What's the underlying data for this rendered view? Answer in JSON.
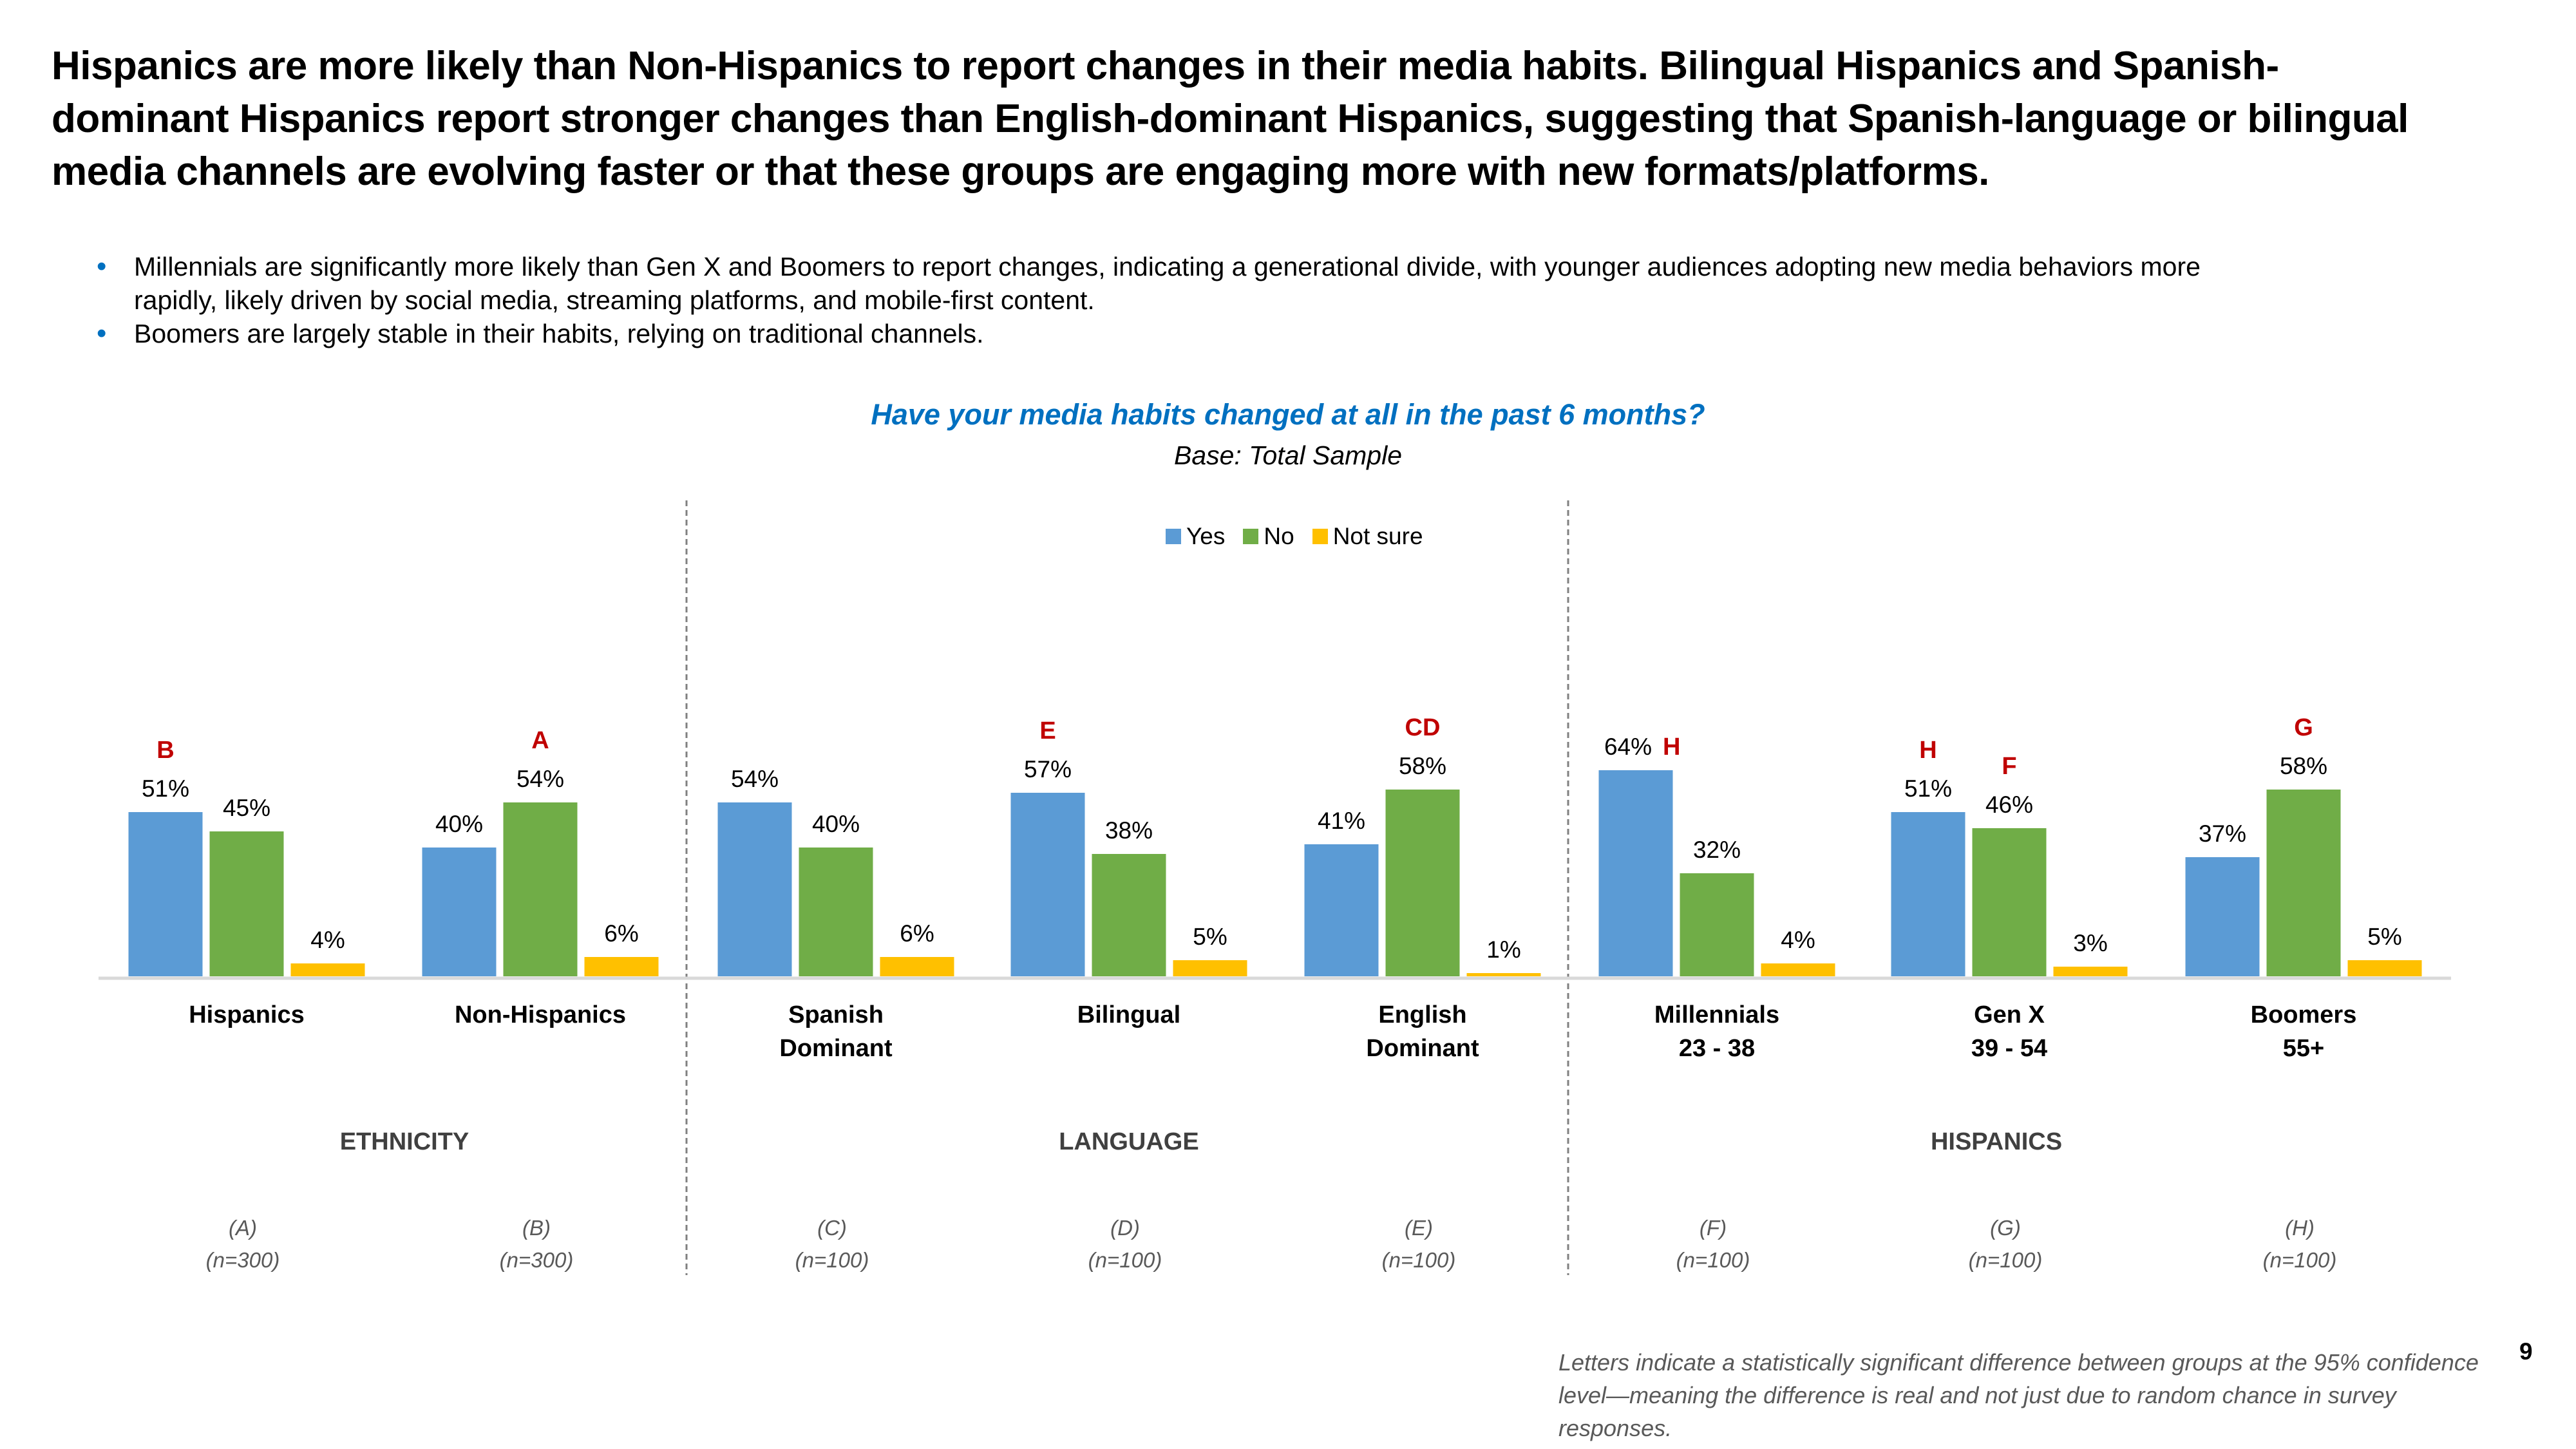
{
  "headline": "Hispanics are more likely than Non-Hispanics to report changes in their media habits. Bilingual Hispanics and Spanish-dominant Hispanics report stronger changes than English-dominant Hispanics, suggesting that Spanish-language or bilingual media channels are evolving faster or that these groups are engaging more with new formats/platforms.",
  "bullets": [
    "Millennials are significantly more likely than Gen X and Boomers to report changes, indicating a generational divide, with younger audiences adopting new media behaviors more rapidly, likely driven by social media, streaming platforms, and mobile-first content.",
    "Boomers are largely stable in their habits, relying on traditional channels."
  ],
  "bullet_glyph": "•",
  "colors": {
    "yes": "#5B9BD5",
    "no": "#70AD47",
    "not_sure": "#FFC000",
    "title_blue": "#0070C0",
    "sig_red": "#C00000",
    "axis": "#D9D9D9",
    "divider": "#808080"
  },
  "chart_data": {
    "type": "bar",
    "title": "Have your media habits changed at all in the past 6 months?",
    "subtitle": "Base: Total Sample",
    "xlabel": "",
    "ylabel": "",
    "ylim": [
      0,
      100
    ],
    "grid": false,
    "legend_position": "top-center",
    "value_format": "percent",
    "categories": [
      "Hispanics",
      "Non-Hispanics",
      "Spanish Dominant",
      "Bilingual",
      "English Dominant",
      "Millennials 23 - 38",
      "Gen X 39 - 54",
      "Boomers 55+"
    ],
    "category_lines": [
      [
        "Hispanics"
      ],
      [
        "Non-Hispanics"
      ],
      [
        "Spanish",
        "Dominant"
      ],
      [
        "Bilingual"
      ],
      [
        "English",
        "Dominant"
      ],
      [
        "Millennials",
        "23 - 38"
      ],
      [
        "Gen X",
        "39 - 54"
      ],
      [
        "Boomers",
        "55+"
      ]
    ],
    "series": [
      {
        "name": "Yes",
        "values": [
          51,
          40,
          54,
          57,
          41,
          64,
          51,
          37
        ]
      },
      {
        "name": "No",
        "values": [
          45,
          54,
          40,
          38,
          58,
          32,
          46,
          58
        ]
      },
      {
        "name": "Not sure",
        "values": [
          4,
          6,
          6,
          5,
          1,
          4,
          3,
          5
        ]
      }
    ],
    "significance": [
      {
        "category": "Hispanics",
        "series": "Yes",
        "letters": "B"
      },
      {
        "category": "Non-Hispanics",
        "series": "No",
        "letters": "A"
      },
      {
        "category": "Bilingual",
        "series": "Yes",
        "letters": "E"
      },
      {
        "category": "English Dominant",
        "series": "No",
        "letters": "CD"
      },
      {
        "category": "Millennials 23 - 38",
        "series": "Yes",
        "letters": "H",
        "inline": true
      },
      {
        "category": "Gen X 39 - 54",
        "series": "Yes",
        "letters": "H"
      },
      {
        "category": "Gen X 39 - 54",
        "series": "No",
        "letters": "F"
      },
      {
        "category": "Boomers 55+",
        "series": "No",
        "letters": "G"
      }
    ],
    "groups": [
      {
        "label": "ETHNICITY",
        "categories": [
          "Hispanics",
          "Non-Hispanics"
        ]
      },
      {
        "label": "LANGUAGE",
        "categories": [
          "Spanish Dominant",
          "Bilingual",
          "English Dominant"
        ]
      },
      {
        "label": "HISPANICS",
        "categories": [
          "Millennials 23 - 38",
          "Gen X 39 - 54",
          "Boomers 55+"
        ]
      }
    ],
    "column_letters": [
      "(A)",
      "(B)",
      "(C)",
      "(D)",
      "(E)",
      "(F)",
      "(G)",
      "(H)"
    ],
    "sample_sizes": [
      "(n=300)",
      "(n=300)",
      "(n=100)",
      "(n=100)",
      "(n=100)",
      "(n=100)",
      "(n=100)",
      "(n=100)"
    ]
  },
  "footnote": "Letters indicate a statistically significant difference between groups at the 95% confidence level—meaning the difference is real and not just due to random chance in survey responses.",
  "page_number": "9"
}
